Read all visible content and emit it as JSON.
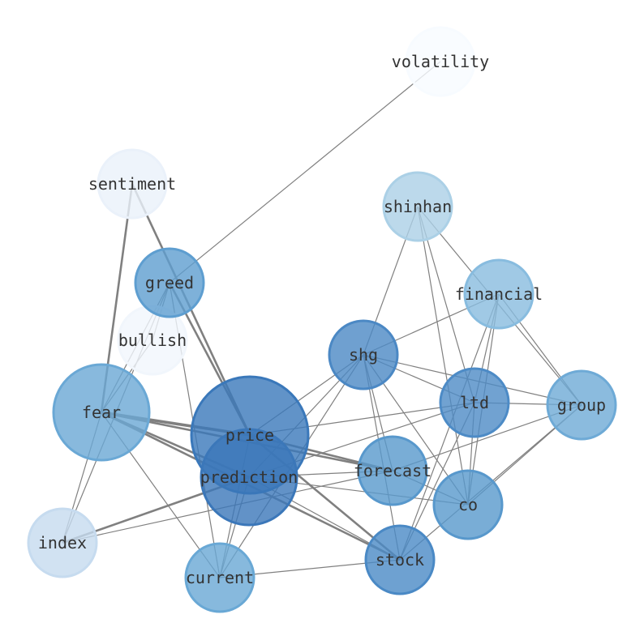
{
  "diagram": {
    "type": "network",
    "nodes": [
      {
        "id": "volatility",
        "label": "volatility",
        "color": "#f7fbff",
        "size": "small"
      },
      {
        "id": "sentiment",
        "label": "sentiment",
        "color": "#eaf1fa",
        "size": "small"
      },
      {
        "id": "shinhan",
        "label": "shinhan",
        "color": "#abd0e6",
        "size": "small"
      },
      {
        "id": "greed",
        "label": "greed",
        "color": "#5e9ed0",
        "size": "small"
      },
      {
        "id": "financial",
        "label": "financial",
        "color": "#88bcdf",
        "size": "small"
      },
      {
        "id": "bullish",
        "label": "bullish",
        "color": "#f1f6fc",
        "size": "small"
      },
      {
        "id": "shg",
        "label": "shg",
        "color": "#4b88c4",
        "size": "small"
      },
      {
        "id": "ltd",
        "label": "ltd",
        "color": "#4d8bc6",
        "size": "small"
      },
      {
        "id": "group",
        "label": "group",
        "color": "#6eaad6",
        "size": "small"
      },
      {
        "id": "fear",
        "label": "fear",
        "color": "#6aa8d5",
        "size": "medium"
      },
      {
        "id": "price",
        "label": "price",
        "color": "#3a78ba",
        "size": "large"
      },
      {
        "id": "prediction",
        "label": "prediction",
        "color": "#3b77b9",
        "size": "medium"
      },
      {
        "id": "forecast",
        "label": "forecast",
        "color": "#5898cc",
        "size": "small"
      },
      {
        "id": "co",
        "label": "co",
        "color": "#5898cc",
        "size": "small"
      },
      {
        "id": "index",
        "label": "index",
        "color": "#c6dbef",
        "size": "small"
      },
      {
        "id": "current",
        "label": "current",
        "color": "#69a8d5",
        "size": "small"
      },
      {
        "id": "stock",
        "label": "stock",
        "color": "#4a89c5",
        "size": "small"
      }
    ],
    "edges": [
      {
        "source": "volatility",
        "target": "greed",
        "weight": 1
      },
      {
        "source": "sentiment",
        "target": "fear",
        "weight": 2
      },
      {
        "source": "sentiment",
        "target": "price",
        "weight": 2
      },
      {
        "source": "greed",
        "target": "fear",
        "weight": 1
      },
      {
        "source": "greed",
        "target": "bullish",
        "weight": 1
      },
      {
        "source": "greed",
        "target": "index",
        "weight": 1
      },
      {
        "source": "greed",
        "target": "current",
        "weight": 1
      },
      {
        "source": "greed",
        "target": "price",
        "weight": 2
      },
      {
        "source": "bullish",
        "target": "fear",
        "weight": 1
      },
      {
        "source": "fear",
        "target": "index",
        "weight": 1
      },
      {
        "source": "fear",
        "target": "price",
        "weight": 3
      },
      {
        "source": "fear",
        "target": "prediction",
        "weight": 2
      },
      {
        "source": "fear",
        "target": "forecast",
        "weight": 2
      },
      {
        "source": "fear",
        "target": "stock",
        "weight": 2
      },
      {
        "source": "fear",
        "target": "current",
        "weight": 1
      },
      {
        "source": "index",
        "target": "prediction",
        "weight": 2
      },
      {
        "source": "index",
        "target": "forecast",
        "weight": 1
      },
      {
        "source": "shinhan",
        "target": "shg",
        "weight": 1
      },
      {
        "source": "shinhan",
        "target": "ltd",
        "weight": 1
      },
      {
        "source": "shinhan",
        "target": "co",
        "weight": 1
      },
      {
        "source": "shinhan",
        "target": "group",
        "weight": 1
      },
      {
        "source": "financial",
        "target": "shg",
        "weight": 1
      },
      {
        "source": "financial",
        "target": "ltd",
        "weight": 1
      },
      {
        "source": "financial",
        "target": "co",
        "weight": 1
      },
      {
        "source": "financial",
        "target": "stock",
        "weight": 1
      },
      {
        "source": "financial",
        "target": "group",
        "weight": 1
      },
      {
        "source": "shg",
        "target": "price",
        "weight": 1
      },
      {
        "source": "shg",
        "target": "prediction",
        "weight": 1
      },
      {
        "source": "shg",
        "target": "current",
        "weight": 1
      },
      {
        "source": "shg",
        "target": "forecast",
        "weight": 1
      },
      {
        "source": "shg",
        "target": "stock",
        "weight": 1
      },
      {
        "source": "shg",
        "target": "co",
        "weight": 1
      },
      {
        "source": "shg",
        "target": "ltd",
        "weight": 1
      },
      {
        "source": "shg",
        "target": "group",
        "weight": 1
      },
      {
        "source": "ltd",
        "target": "price",
        "weight": 1
      },
      {
        "source": "ltd",
        "target": "prediction",
        "weight": 1
      },
      {
        "source": "ltd",
        "target": "stock",
        "weight": 1
      },
      {
        "source": "ltd",
        "target": "co",
        "weight": 1
      },
      {
        "source": "ltd",
        "target": "group",
        "weight": 1
      },
      {
        "source": "group",
        "target": "forecast",
        "weight": 1
      },
      {
        "source": "group",
        "target": "stock",
        "weight": 1
      },
      {
        "source": "group",
        "target": "co",
        "weight": 1
      },
      {
        "source": "forecast",
        "target": "price",
        "weight": 2
      },
      {
        "source": "forecast",
        "target": "co",
        "weight": 1
      },
      {
        "source": "prediction",
        "target": "co",
        "weight": 1
      },
      {
        "source": "prediction",
        "target": "forecast",
        "weight": 1
      },
      {
        "source": "prediction",
        "target": "stock",
        "weight": 1
      },
      {
        "source": "prediction",
        "target": "current",
        "weight": 1
      },
      {
        "source": "price",
        "target": "stock",
        "weight": 2
      },
      {
        "source": "price",
        "target": "current",
        "weight": 1
      },
      {
        "source": "current",
        "target": "stock",
        "weight": 1
      }
    ]
  }
}
